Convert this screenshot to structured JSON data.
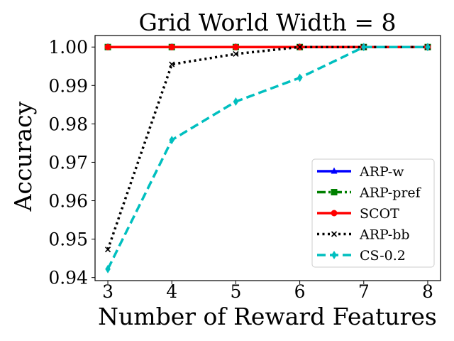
{
  "chart_data": {
    "type": "line",
    "title": "Grid World Width = 8",
    "xlabel": "Number of Reward Features",
    "ylabel": "Accuracy",
    "x": [
      3,
      4,
      5,
      6,
      7,
      8
    ],
    "xlim": [
      2.8,
      8.2
    ],
    "ylim": [
      0.9392,
      1.003
    ],
    "xticks": [
      3,
      4,
      5,
      6,
      7,
      8
    ],
    "xtick_labels": [
      "3",
      "4",
      "5",
      "6",
      "7",
      "8"
    ],
    "yticks": [
      0.94,
      0.95,
      0.96,
      0.97,
      0.98,
      0.99,
      1.0
    ],
    "ytick_labels": [
      "0.94",
      "0.95",
      "0.96",
      "0.97",
      "0.98",
      "0.99",
      "1.00"
    ],
    "grid": false,
    "legend_position": "lower-right",
    "series": [
      {
        "name": "ARP-w",
        "color": "#0000ff",
        "dash": "solid",
        "marker": "triangle",
        "values": [
          1.0,
          1.0,
          1.0,
          1.0,
          1.0,
          1.0
        ]
      },
      {
        "name": "ARP-pref",
        "color": "#008000",
        "dash": "dashdot",
        "marker": "square",
        "values": [
          1.0,
          1.0,
          1.0,
          1.0,
          1.0,
          1.0
        ]
      },
      {
        "name": "SCOT",
        "color": "#ff0000",
        "dash": "solid",
        "marker": "circle",
        "values": [
          1.0,
          1.0,
          1.0,
          1.0,
          1.0,
          1.0
        ]
      },
      {
        "name": "ARP-bb",
        "color": "#000000",
        "dash": "dotted",
        "marker": "x",
        "values": [
          0.9473,
          0.9955,
          0.9982,
          1.0,
          1.0,
          1.0
        ]
      },
      {
        "name": "CS-0.2",
        "color": "#00bfbf",
        "dash": "dashed",
        "marker": "thin-diamond",
        "values": [
          0.9422,
          0.9758,
          0.9858,
          0.992,
          1.0,
          1.0
        ]
      }
    ]
  }
}
